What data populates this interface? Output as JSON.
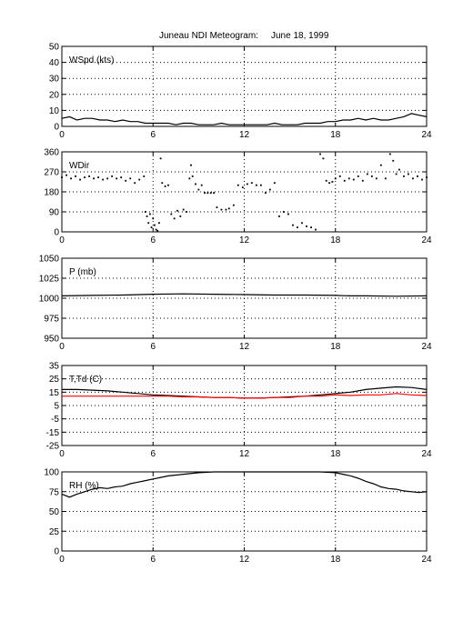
{
  "title": "Juneau NDI Meteogram:",
  "date": "June 18, 1999",
  "chart_data": [
    {
      "type": "line",
      "label": "WSpd (kts)",
      "xlim": [
        0,
        24
      ],
      "xticks": [
        0,
        6,
        12,
        18,
        24
      ],
      "ylim": [
        0,
        50
      ],
      "yticks": [
        0,
        10,
        20,
        30,
        40,
        50
      ],
      "grid": true,
      "series": [
        {
          "color": "#000000",
          "style": "line",
          "x": [
            0,
            0.5,
            1,
            1.5,
            2,
            2.5,
            3,
            3.5,
            4,
            4.5,
            5,
            5.5,
            6,
            6.5,
            7,
            7.5,
            8,
            8.5,
            9,
            9.5,
            10,
            10.5,
            11,
            11.5,
            12,
            12.5,
            13,
            13.5,
            14,
            14.5,
            15,
            15.5,
            16,
            16.5,
            17,
            17.5,
            18,
            18.5,
            19,
            19.5,
            20,
            20.5,
            21,
            21.5,
            22,
            22.5,
            23,
            23.5,
            24
          ],
          "y": [
            5,
            6,
            4,
            5,
            5,
            4,
            4,
            3,
            4,
            3,
            3,
            2,
            2,
            2,
            2,
            1,
            2,
            2,
            1,
            1,
            1,
            2,
            1,
            1,
            1,
            1,
            1,
            1,
            2,
            1,
            1,
            1,
            2,
            2,
            2,
            3,
            3,
            4,
            4,
            5,
            4,
            5,
            4,
            4,
            5,
            6,
            8,
            7,
            6
          ]
        }
      ]
    },
    {
      "type": "scatter",
      "label": "WDir",
      "xlim": [
        0,
        24
      ],
      "xticks": [
        0,
        6,
        12,
        18,
        24
      ],
      "ylim": [
        0,
        360
      ],
      "yticks": [
        0,
        90,
        180,
        270,
        360
      ],
      "grid": true,
      "series": [
        {
          "color": "#000000",
          "style": "dots",
          "x": [
            0,
            0.3,
            0.6,
            0.9,
            1.2,
            1.5,
            1.8,
            2.1,
            2.4,
            2.7,
            3.0,
            3.3,
            3.6,
            3.9,
            4.2,
            4.5,
            4.8,
            5.1,
            5.4,
            5.5,
            5.6,
            5.7,
            5.8,
            5.9,
            6.0,
            6.1,
            6.2,
            6.3,
            6.4,
            6.5,
            6.6,
            6.8,
            7.0,
            7.2,
            7.4,
            7.6,
            7.8,
            8.0,
            8.2,
            8.4,
            8.5,
            8.6,
            8.8,
            9.0,
            9.2,
            9.4,
            9.6,
            9.8,
            10.0,
            10.2,
            10.5,
            10.8,
            11.0,
            11.3,
            11.6,
            11.9,
            12.2,
            12.5,
            12.8,
            13.1,
            13.4,
            13.7,
            14.0,
            14.3,
            14.6,
            14.9,
            15.2,
            15.5,
            15.8,
            16.1,
            16.4,
            16.7,
            17.0,
            17.2,
            17.4,
            17.6,
            17.8,
            18.0,
            18.3,
            18.6,
            18.9,
            19.2,
            19.5,
            19.8,
            20.1,
            20.4,
            20.7,
            21.0,
            21.3,
            21.6,
            21.8,
            22.0,
            22.2,
            22.5,
            22.8,
            23.1,
            23.4,
            23.7,
            24.0
          ],
          "y": [
            245,
            255,
            240,
            250,
            235,
            245,
            250,
            240,
            245,
            235,
            240,
            250,
            240,
            245,
            230,
            240,
            220,
            235,
            250,
            90,
            70,
            40,
            80,
            20,
            60,
            30,
            10,
            5,
            40,
            330,
            220,
            205,
            210,
            80,
            60,
            95,
            70,
            100,
            90,
            240,
            300,
            250,
            215,
            190,
            210,
            175,
            175,
            175,
            175,
            110,
            100,
            100,
            105,
            120,
            210,
            200,
            215,
            220,
            210,
            210,
            175,
            190,
            220,
            70,
            90,
            80,
            30,
            20,
            40,
            25,
            20,
            10,
            350,
            330,
            230,
            220,
            225,
            240,
            250,
            230,
            240,
            235,
            250,
            230,
            260,
            250,
            240,
            300,
            240,
            350,
            320,
            260,
            280,
            250,
            260,
            240,
            250,
            235,
            245
          ]
        }
      ]
    },
    {
      "type": "line",
      "label": "P (mb)",
      "xlim": [
        0,
        24
      ],
      "xticks": [
        0,
        6,
        12,
        18,
        24
      ],
      "ylim": [
        950,
        1050
      ],
      "yticks": [
        950,
        975,
        1000,
        1025,
        1050
      ],
      "grid": true,
      "series": [
        {
          "color": "#000000",
          "style": "line",
          "x": [
            0,
            2,
            4,
            6,
            8,
            10,
            12,
            14,
            16,
            18,
            19,
            20,
            22,
            24
          ],
          "y": [
            1003,
            1003.5,
            1004,
            1005,
            1005.5,
            1005,
            1004.5,
            1004,
            1004,
            1003.5,
            1003,
            1003,
            1002.5,
            1003
          ]
        }
      ]
    },
    {
      "type": "line",
      "label": "T,Td (C)",
      "xlim": [
        0,
        24
      ],
      "xticks": [
        0,
        6,
        12,
        18,
        24
      ],
      "ylim": [
        -25,
        35
      ],
      "yticks": [
        -25,
        -15,
        -5,
        5,
        15,
        25,
        35
      ],
      "grid": true,
      "series": [
        {
          "color": "#000000",
          "style": "line",
          "x": [
            0,
            1,
            2,
            3,
            4,
            5,
            6,
            7,
            8,
            9,
            10,
            11,
            12,
            13,
            14,
            15,
            16,
            17,
            18,
            19,
            20,
            21,
            22,
            23,
            24
          ],
          "y": [
            17,
            17,
            16.5,
            16,
            15,
            14,
            13,
            12.5,
            12,
            11.5,
            11,
            11,
            10.5,
            10.5,
            11,
            11.5,
            12,
            13,
            14,
            15,
            17,
            18,
            19,
            18.5,
            17
          ]
        },
        {
          "color": "#ff0000",
          "style": "line",
          "x": [
            0,
            1,
            2,
            3,
            4,
            5,
            6,
            7,
            8,
            9,
            10,
            11,
            12,
            13,
            14,
            15,
            16,
            17,
            18,
            19,
            20,
            21,
            22,
            23,
            24
          ],
          "y": [
            12,
            12,
            12,
            12,
            12,
            12,
            12,
            12,
            11.5,
            11.5,
            11,
            11,
            10.5,
            10.5,
            11,
            11,
            12,
            12,
            13,
            12.5,
            13,
            13,
            14,
            13,
            12.5
          ]
        }
      ]
    },
    {
      "type": "line",
      "label": "RH (%)",
      "xlim": [
        0,
        24
      ],
      "xticks": [
        0,
        6,
        12,
        18,
        24
      ],
      "ylim": [
        0,
        100
      ],
      "yticks": [
        0,
        25,
        50,
        75,
        100
      ],
      "grid": true,
      "series": [
        {
          "color": "#000000",
          "style": "line",
          "x": [
            0,
            0.5,
            1,
            1.5,
            2,
            2.5,
            3,
            3.5,
            4,
            4.5,
            5,
            5.5,
            6,
            6.5,
            7,
            8,
            9,
            10,
            10.5,
            11,
            12,
            12.5,
            14.5,
            15,
            16,
            17,
            18,
            18.5,
            19,
            19.5,
            20,
            20.5,
            21,
            21.5,
            22,
            22.5,
            23,
            23.5,
            24
          ],
          "y": [
            72,
            68,
            72,
            75,
            78,
            80,
            79,
            81,
            82,
            85,
            87,
            89,
            91,
            93,
            95,
            97,
            99,
            100,
            100,
            100,
            100,
            100,
            100,
            100,
            100,
            100,
            99,
            97,
            95,
            92,
            88,
            85,
            81,
            79,
            78,
            76,
            75,
            74,
            75
          ]
        }
      ]
    }
  ]
}
